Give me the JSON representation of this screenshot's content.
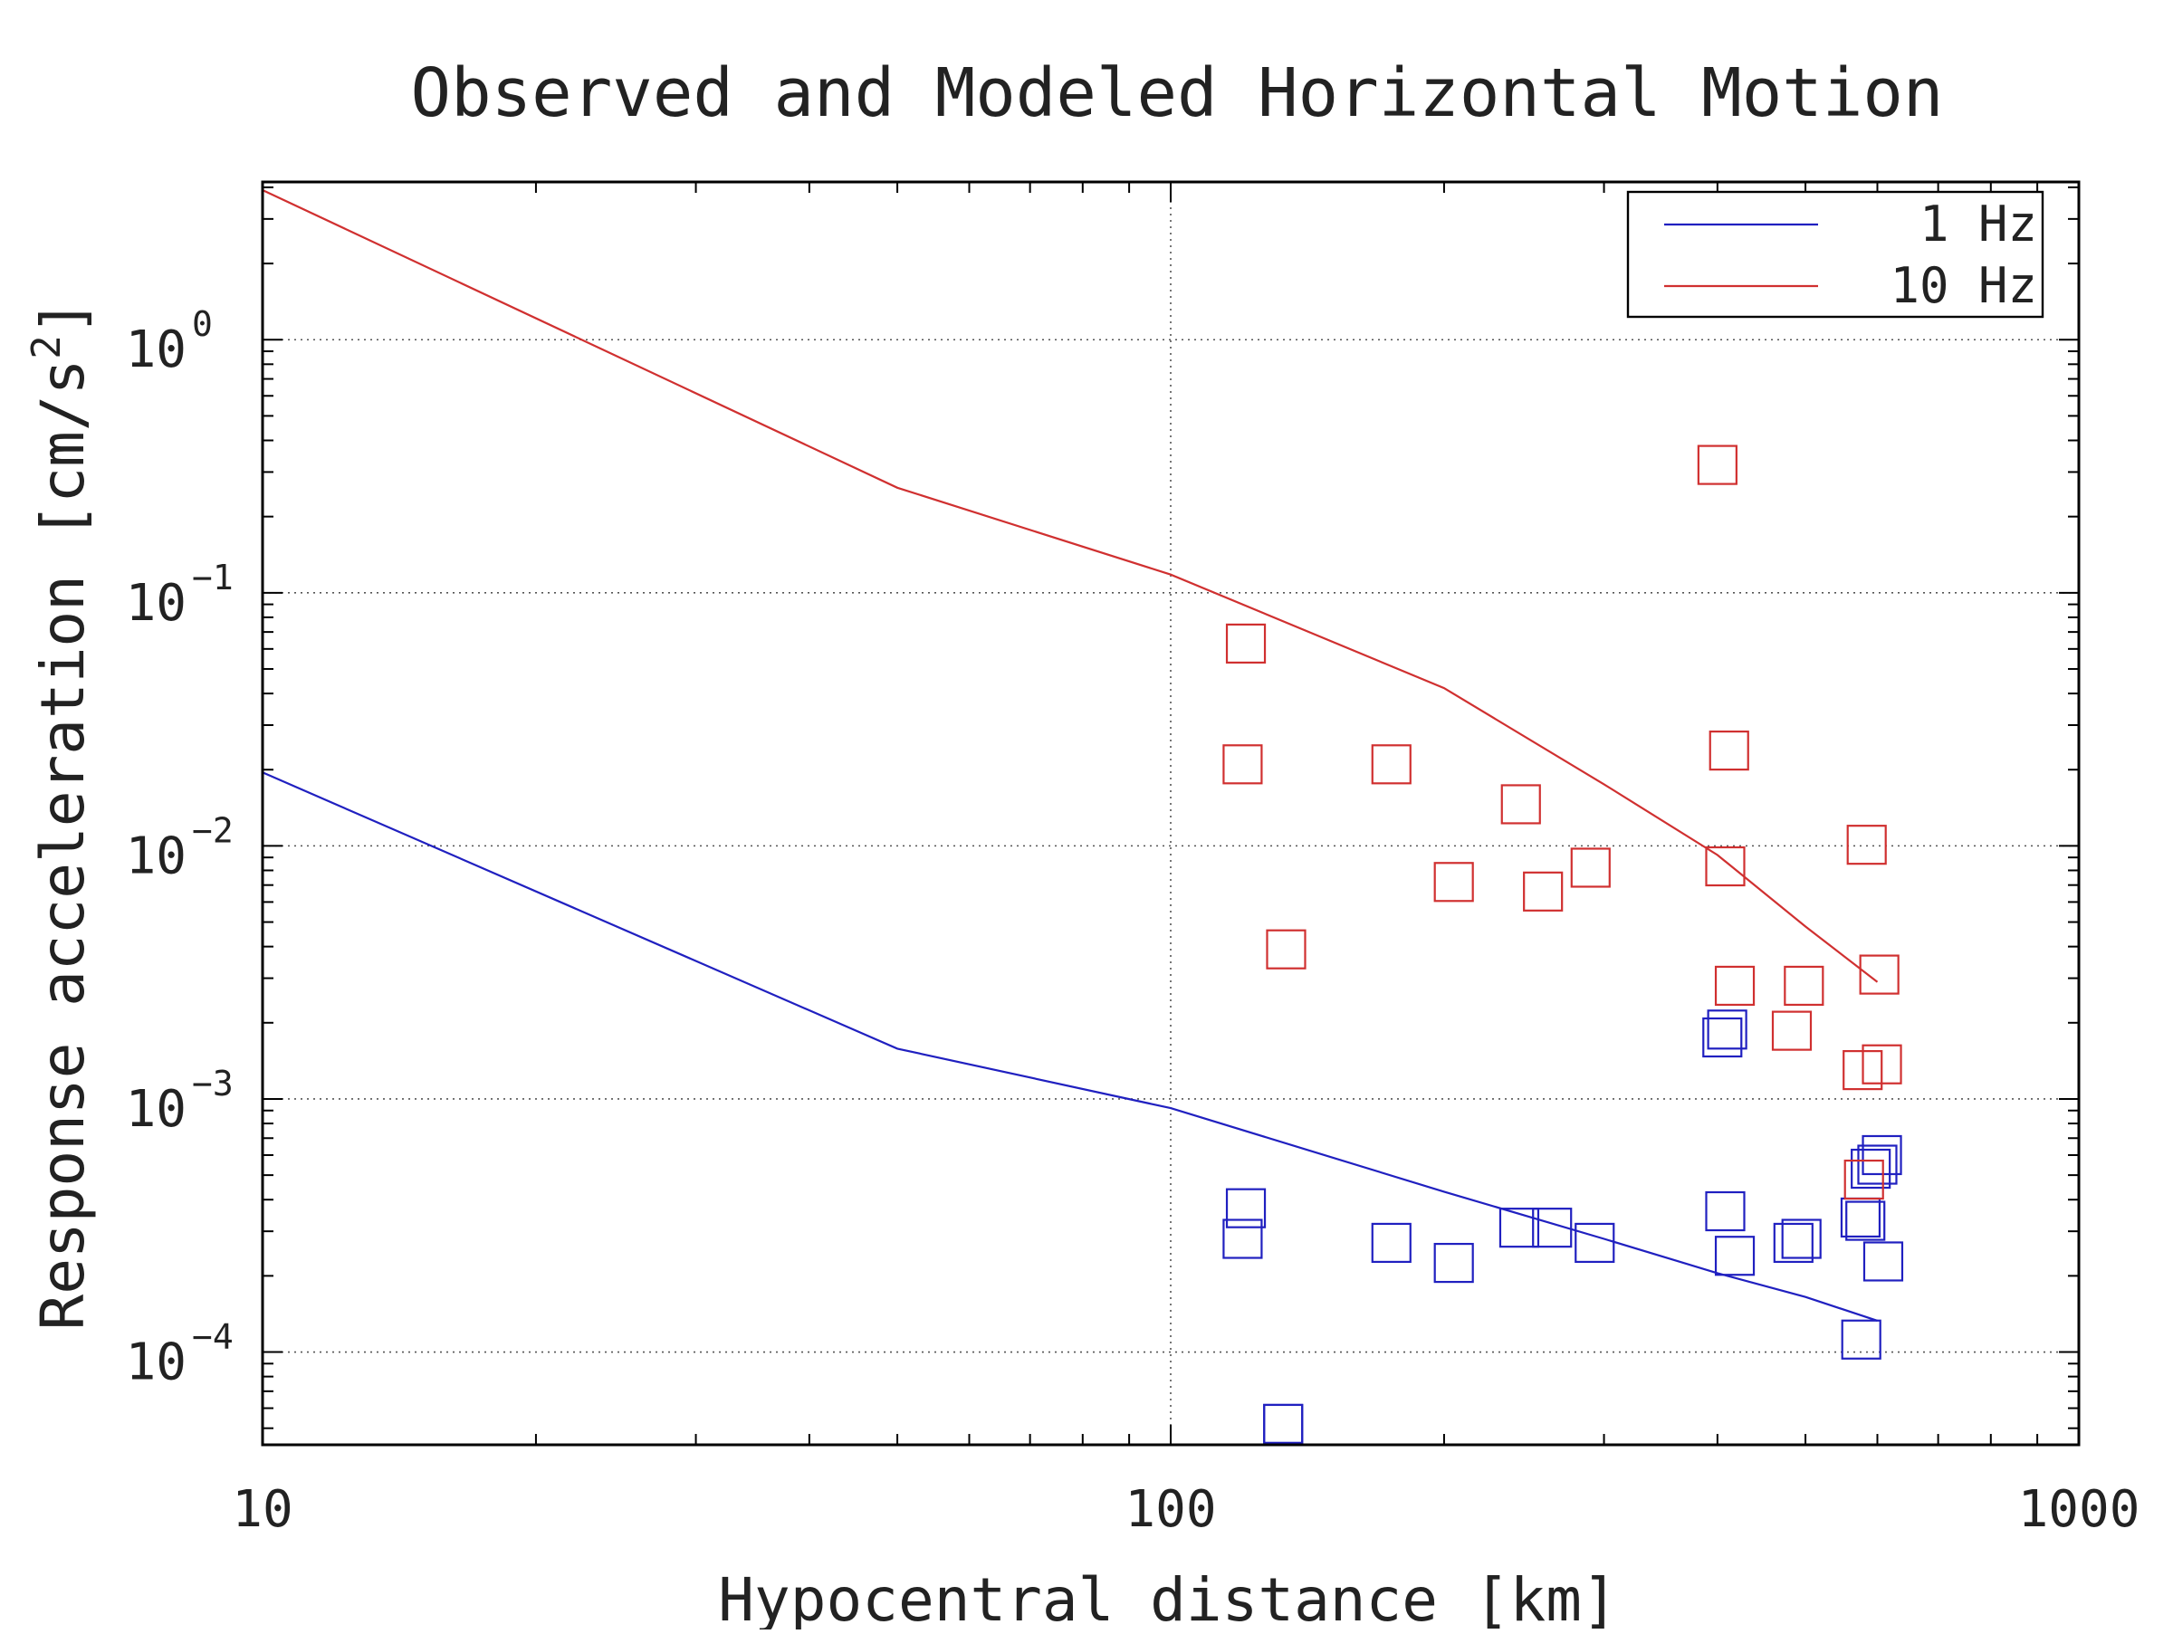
{
  "chart_data": {
    "type": "scatter",
    "title": "Observed and Modeled Horizontal Motion",
    "xlabel": "Hypocentral distance [km]",
    "ylabel": "Response acceleration [cm/s",
    "ylabel_superscript": "2",
    "ylabel_suffix": "]",
    "x_scale": "log",
    "y_scale": "log",
    "xlim": [
      10,
      1000
    ],
    "ylim": [
      4.3e-05,
      4.2
    ],
    "x_ticks": [
      {
        "value": 10,
        "label": "10"
      },
      {
        "value": 100,
        "label": "100"
      },
      {
        "value": 1000,
        "label": "1000"
      }
    ],
    "y_ticks": [
      {
        "value": 1,
        "base": "10",
        "exp": "0"
      },
      {
        "value": 0.1,
        "base": "10",
        "exp": "−1"
      },
      {
        "value": 0.01,
        "base": "10",
        "exp": "−2"
      },
      {
        "value": 0.001,
        "base": "10",
        "exp": "−3"
      },
      {
        "value": 0.0001,
        "base": "10",
        "exp": "−4"
      }
    ],
    "grid": true,
    "legend_position": "top-right",
    "series": [
      {
        "name": "1 Hz",
        "color": "#2020c0",
        "line": {
          "x": [
            10,
            50,
            100,
            200,
            300,
            400,
            500,
            600
          ],
          "y": [
            0.0195,
            0.00158,
            0.00092,
            0.00043,
            0.00028,
            0.000205,
            0.000165,
            0.000133
          ]
        },
        "points": {
          "x": [
            120,
            121,
            133,
            175,
            205,
            242,
            263,
            293,
            405,
            410,
            408,
            418,
            485,
            495,
            575,
            582,
            590,
            600,
            607,
            609,
            576,
            133
          ],
          "y": [
            0.00028,
            0.00037,
            5.2e-05,
            0.00027,
            0.000225,
            0.00031,
            0.00031,
            0.00027,
            0.00175,
            0.00188,
            0.00036,
            0.00024,
            0.00027,
            0.00028,
            0.00034,
            0.00033,
            0.00053,
            0.00055,
            0.0006,
            0.000228,
            0.000112,
            5.2e-05
          ]
        }
      },
      {
        "name": "10 Hz",
        "color": "#d03030",
        "line": {
          "x": [
            10,
            50,
            100,
            200,
            300,
            400,
            500,
            600
          ],
          "y": [
            3.9,
            0.26,
            0.118,
            0.042,
            0.0175,
            0.0092,
            0.0048,
            0.0029
          ]
        },
        "points": {
          "x": [
            121,
            120,
            134,
            175,
            205,
            243,
            257,
            290,
            400,
            412,
            408,
            418,
            483,
            498,
            578,
            580,
            584,
            603,
            607
          ],
          "y": [
            0.063,
            0.021,
            0.0039,
            0.021,
            0.0072,
            0.0146,
            0.0066,
            0.0082,
            0.32,
            0.0238,
            0.0083,
            0.0028,
            0.00186,
            0.0028,
            0.0013,
            0.00048,
            0.0101,
            0.0031,
            0.00137
          ]
        }
      }
    ]
  }
}
